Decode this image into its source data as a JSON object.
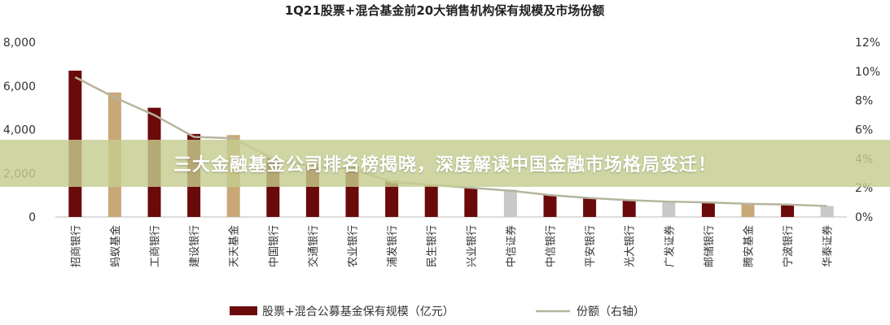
{
  "banner": {
    "text": "三大金融基金公司排名榜揭晓，深度解读中国金融市场格局变迁！"
  },
  "chart_data": {
    "type": "bar",
    "title": "1Q21股票+混合基金前20大销售机构保有规模及市场份额",
    "categories": [
      "招商银行",
      "蚂蚁基金",
      "工商银行",
      "建设银行",
      "天天基金",
      "中国银行",
      "交通银行",
      "农业银行",
      "浦发银行",
      "民生银行",
      "兴业银行",
      "中信证券",
      "中信银行",
      "平安银行",
      "光大银行",
      "广发证券",
      "邮储银行",
      "腾安基金",
      "宁波银行",
      "华泰证券"
    ],
    "bar_colors": [
      "#6b0a0a",
      "#c9a878",
      "#6b0a0a",
      "#6b0a0a",
      "#c9a878",
      "#6b0a0a",
      "#6b0a0a",
      "#6b0a0a",
      "#6b0a0a",
      "#6b0a0a",
      "#6b0a0a",
      "#c8c8c8",
      "#6b0a0a",
      "#6b0a0a",
      "#6b0a0a",
      "#c8c8c8",
      "#6b0a0a",
      "#c9a878",
      "#6b0a0a",
      "#c8c8c8"
    ],
    "series": [
      {
        "name": "股票+混合公募基金保有规模（亿元）",
        "axis": "left",
        "kind": "bar",
        "values": [
          6700,
          5700,
          5000,
          3800,
          3750,
          2700,
          2400,
          2300,
          1650,
          1500,
          1350,
          1250,
          1000,
          850,
          750,
          700,
          650,
          600,
          550,
          500
        ]
      },
      {
        "name": "份额（右轴）",
        "axis": "right",
        "kind": "line",
        "color": "#b5b59d",
        "values": [
          9.6,
          8.2,
          7.0,
          5.5,
          5.4,
          4.0,
          3.5,
          3.3,
          2.4,
          2.2,
          2.0,
          1.8,
          1.5,
          1.3,
          1.15,
          1.05,
          1.0,
          0.9,
          0.85,
          0.75
        ]
      }
    ],
    "yticks_left": [
      "0",
      "2,000",
      "4,000",
      "6,000",
      "8,000"
    ],
    "ylim_left": [
      0,
      8000
    ],
    "yticks_right": [
      "0%",
      "2%",
      "4%",
      "6%",
      "8%",
      "10%",
      "12%"
    ],
    "ylim_right": [
      0,
      12
    ],
    "grid": false,
    "legend_position": "bottom"
  }
}
